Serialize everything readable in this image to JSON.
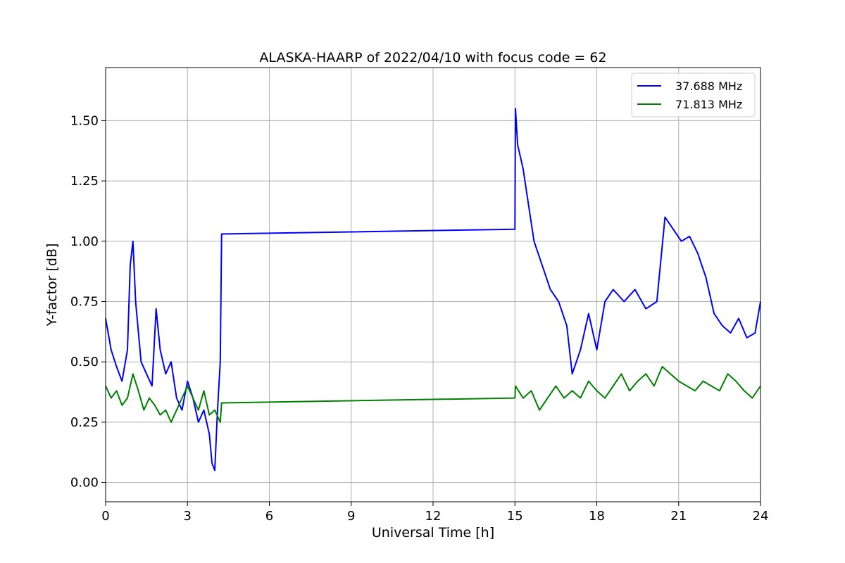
{
  "chart_data": {
    "type": "line",
    "title": "ALASKA-HAARP of 2022/04/10 with focus code = 62",
    "xlabel": "Universal Time [h]",
    "ylabel": "Y-factor [dB]",
    "xlim": [
      0,
      24
    ],
    "ylim": [
      -0.08,
      1.72
    ],
    "xticks": [
      0,
      3,
      6,
      9,
      12,
      15,
      18,
      21,
      24
    ],
    "xtick_labels": [
      "0",
      "3",
      "6",
      "9",
      "12",
      "15",
      "18",
      "21",
      "24"
    ],
    "yticks": [
      0.0,
      0.25,
      0.5,
      0.75,
      1.0,
      1.25,
      1.5
    ],
    "ytick_labels": [
      "0.00",
      "0.25",
      "0.50",
      "0.75",
      "1.00",
      "1.25",
      "1.50"
    ],
    "grid": true,
    "legend_position": "top-right",
    "series": [
      {
        "name": "37.688 MHz",
        "color": "#0000ff",
        "x": [
          0.0,
          0.2,
          0.4,
          0.6,
          0.8,
          0.9,
          1.0,
          1.1,
          1.3,
          1.5,
          1.7,
          1.85,
          2.0,
          2.2,
          2.4,
          2.6,
          2.8,
          3.0,
          3.2,
          3.4,
          3.6,
          3.8,
          3.9,
          4.0,
          4.1,
          4.2,
          4.25,
          15.0,
          15.02,
          15.1,
          15.3,
          15.5,
          15.7,
          16.0,
          16.3,
          16.6,
          16.9,
          17.1,
          17.4,
          17.7,
          18.0,
          18.3,
          18.6,
          19.0,
          19.4,
          19.8,
          20.2,
          20.5,
          20.8,
          21.1,
          21.4,
          21.7,
          22.0,
          22.3,
          22.6,
          22.9,
          23.2,
          23.5,
          23.8,
          24.0
        ],
        "y": [
          0.68,
          0.55,
          0.48,
          0.42,
          0.55,
          0.9,
          1.0,
          0.75,
          0.5,
          0.45,
          0.4,
          0.72,
          0.55,
          0.45,
          0.5,
          0.35,
          0.3,
          0.42,
          0.35,
          0.25,
          0.3,
          0.2,
          0.08,
          0.05,
          0.3,
          0.5,
          1.03,
          1.05,
          1.55,
          1.4,
          1.3,
          1.15,
          1.0,
          0.9,
          0.8,
          0.75,
          0.65,
          0.45,
          0.55,
          0.7,
          0.55,
          0.75,
          0.8,
          0.75,
          0.8,
          0.72,
          0.75,
          1.1,
          1.05,
          1.0,
          1.02,
          0.95,
          0.85,
          0.7,
          0.65,
          0.62,
          0.68,
          0.6,
          0.62,
          0.75
        ]
      },
      {
        "name": "71.813 MHz",
        "color": "#008000",
        "x": [
          0.0,
          0.2,
          0.4,
          0.6,
          0.8,
          1.0,
          1.2,
          1.4,
          1.6,
          1.8,
          2.0,
          2.2,
          2.4,
          2.6,
          2.8,
          3.0,
          3.2,
          3.4,
          3.6,
          3.8,
          4.0,
          4.2,
          4.25,
          15.0,
          15.02,
          15.3,
          15.6,
          15.9,
          16.2,
          16.5,
          16.8,
          17.1,
          17.4,
          17.7,
          18.0,
          18.3,
          18.6,
          18.9,
          19.2,
          19.5,
          19.8,
          20.1,
          20.4,
          20.7,
          21.0,
          21.3,
          21.6,
          21.9,
          22.2,
          22.5,
          22.8,
          23.1,
          23.4,
          23.7,
          24.0
        ],
        "y": [
          0.4,
          0.35,
          0.38,
          0.32,
          0.35,
          0.45,
          0.38,
          0.3,
          0.35,
          0.32,
          0.28,
          0.3,
          0.25,
          0.3,
          0.35,
          0.4,
          0.35,
          0.3,
          0.38,
          0.28,
          0.3,
          0.25,
          0.33,
          0.35,
          0.4,
          0.35,
          0.38,
          0.3,
          0.35,
          0.4,
          0.35,
          0.38,
          0.35,
          0.42,
          0.38,
          0.35,
          0.4,
          0.45,
          0.38,
          0.42,
          0.45,
          0.4,
          0.48,
          0.45,
          0.42,
          0.4,
          0.38,
          0.42,
          0.4,
          0.38,
          0.45,
          0.42,
          0.38,
          0.35,
          0.4
        ]
      }
    ]
  }
}
